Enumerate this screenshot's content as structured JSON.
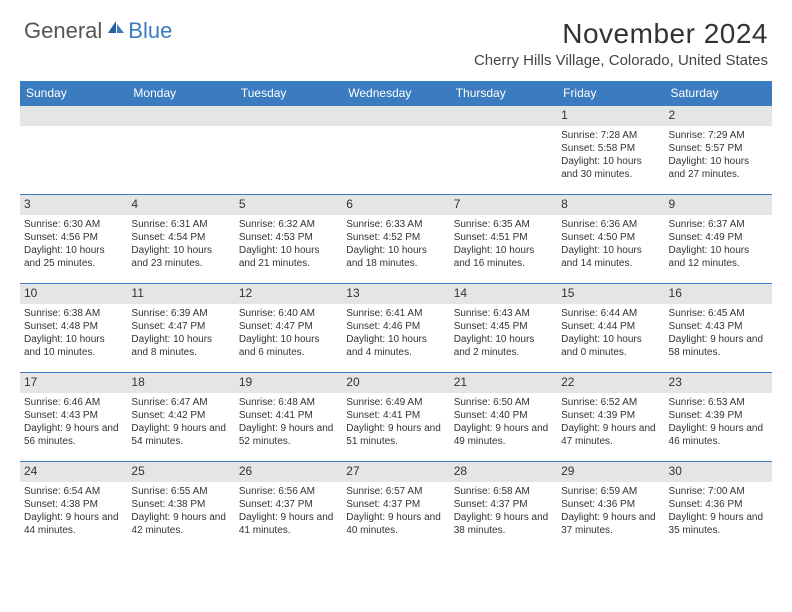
{
  "logo": {
    "general": "General",
    "blue": "Blue"
  },
  "title": "November 2024",
  "location": "Cherry Hills Village, Colorado, United States",
  "day_headers": [
    "Sunday",
    "Monday",
    "Tuesday",
    "Wednesday",
    "Thursday",
    "Friday",
    "Saturday"
  ],
  "colors": {
    "header_bg": "#3b7bbf",
    "header_text": "#ffffff",
    "daynum_bg": "#e5e5e5",
    "row_border": "#3b7bbf",
    "body_text": "#333333"
  },
  "weeks": [
    [
      {
        "num": "",
        "sunrise": "",
        "sunset": "",
        "daylight": ""
      },
      {
        "num": "",
        "sunrise": "",
        "sunset": "",
        "daylight": ""
      },
      {
        "num": "",
        "sunrise": "",
        "sunset": "",
        "daylight": ""
      },
      {
        "num": "",
        "sunrise": "",
        "sunset": "",
        "daylight": ""
      },
      {
        "num": "",
        "sunrise": "",
        "sunset": "",
        "daylight": ""
      },
      {
        "num": "1",
        "sunrise": "Sunrise: 7:28 AM",
        "sunset": "Sunset: 5:58 PM",
        "daylight": "Daylight: 10 hours and 30 minutes."
      },
      {
        "num": "2",
        "sunrise": "Sunrise: 7:29 AM",
        "sunset": "Sunset: 5:57 PM",
        "daylight": "Daylight: 10 hours and 27 minutes."
      }
    ],
    [
      {
        "num": "3",
        "sunrise": "Sunrise: 6:30 AM",
        "sunset": "Sunset: 4:56 PM",
        "daylight": "Daylight: 10 hours and 25 minutes."
      },
      {
        "num": "4",
        "sunrise": "Sunrise: 6:31 AM",
        "sunset": "Sunset: 4:54 PM",
        "daylight": "Daylight: 10 hours and 23 minutes."
      },
      {
        "num": "5",
        "sunrise": "Sunrise: 6:32 AM",
        "sunset": "Sunset: 4:53 PM",
        "daylight": "Daylight: 10 hours and 21 minutes."
      },
      {
        "num": "6",
        "sunrise": "Sunrise: 6:33 AM",
        "sunset": "Sunset: 4:52 PM",
        "daylight": "Daylight: 10 hours and 18 minutes."
      },
      {
        "num": "7",
        "sunrise": "Sunrise: 6:35 AM",
        "sunset": "Sunset: 4:51 PM",
        "daylight": "Daylight: 10 hours and 16 minutes."
      },
      {
        "num": "8",
        "sunrise": "Sunrise: 6:36 AM",
        "sunset": "Sunset: 4:50 PM",
        "daylight": "Daylight: 10 hours and 14 minutes."
      },
      {
        "num": "9",
        "sunrise": "Sunrise: 6:37 AM",
        "sunset": "Sunset: 4:49 PM",
        "daylight": "Daylight: 10 hours and 12 minutes."
      }
    ],
    [
      {
        "num": "10",
        "sunrise": "Sunrise: 6:38 AM",
        "sunset": "Sunset: 4:48 PM",
        "daylight": "Daylight: 10 hours and 10 minutes."
      },
      {
        "num": "11",
        "sunrise": "Sunrise: 6:39 AM",
        "sunset": "Sunset: 4:47 PM",
        "daylight": "Daylight: 10 hours and 8 minutes."
      },
      {
        "num": "12",
        "sunrise": "Sunrise: 6:40 AM",
        "sunset": "Sunset: 4:47 PM",
        "daylight": "Daylight: 10 hours and 6 minutes."
      },
      {
        "num": "13",
        "sunrise": "Sunrise: 6:41 AM",
        "sunset": "Sunset: 4:46 PM",
        "daylight": "Daylight: 10 hours and 4 minutes."
      },
      {
        "num": "14",
        "sunrise": "Sunrise: 6:43 AM",
        "sunset": "Sunset: 4:45 PM",
        "daylight": "Daylight: 10 hours and 2 minutes."
      },
      {
        "num": "15",
        "sunrise": "Sunrise: 6:44 AM",
        "sunset": "Sunset: 4:44 PM",
        "daylight": "Daylight: 10 hours and 0 minutes."
      },
      {
        "num": "16",
        "sunrise": "Sunrise: 6:45 AM",
        "sunset": "Sunset: 4:43 PM",
        "daylight": "Daylight: 9 hours and 58 minutes."
      }
    ],
    [
      {
        "num": "17",
        "sunrise": "Sunrise: 6:46 AM",
        "sunset": "Sunset: 4:43 PM",
        "daylight": "Daylight: 9 hours and 56 minutes."
      },
      {
        "num": "18",
        "sunrise": "Sunrise: 6:47 AM",
        "sunset": "Sunset: 4:42 PM",
        "daylight": "Daylight: 9 hours and 54 minutes."
      },
      {
        "num": "19",
        "sunrise": "Sunrise: 6:48 AM",
        "sunset": "Sunset: 4:41 PM",
        "daylight": "Daylight: 9 hours and 52 minutes."
      },
      {
        "num": "20",
        "sunrise": "Sunrise: 6:49 AM",
        "sunset": "Sunset: 4:41 PM",
        "daylight": "Daylight: 9 hours and 51 minutes."
      },
      {
        "num": "21",
        "sunrise": "Sunrise: 6:50 AM",
        "sunset": "Sunset: 4:40 PM",
        "daylight": "Daylight: 9 hours and 49 minutes."
      },
      {
        "num": "22",
        "sunrise": "Sunrise: 6:52 AM",
        "sunset": "Sunset: 4:39 PM",
        "daylight": "Daylight: 9 hours and 47 minutes."
      },
      {
        "num": "23",
        "sunrise": "Sunrise: 6:53 AM",
        "sunset": "Sunset: 4:39 PM",
        "daylight": "Daylight: 9 hours and 46 minutes."
      }
    ],
    [
      {
        "num": "24",
        "sunrise": "Sunrise: 6:54 AM",
        "sunset": "Sunset: 4:38 PM",
        "daylight": "Daylight: 9 hours and 44 minutes."
      },
      {
        "num": "25",
        "sunrise": "Sunrise: 6:55 AM",
        "sunset": "Sunset: 4:38 PM",
        "daylight": "Daylight: 9 hours and 42 minutes."
      },
      {
        "num": "26",
        "sunrise": "Sunrise: 6:56 AM",
        "sunset": "Sunset: 4:37 PM",
        "daylight": "Daylight: 9 hours and 41 minutes."
      },
      {
        "num": "27",
        "sunrise": "Sunrise: 6:57 AM",
        "sunset": "Sunset: 4:37 PM",
        "daylight": "Daylight: 9 hours and 40 minutes."
      },
      {
        "num": "28",
        "sunrise": "Sunrise: 6:58 AM",
        "sunset": "Sunset: 4:37 PM",
        "daylight": "Daylight: 9 hours and 38 minutes."
      },
      {
        "num": "29",
        "sunrise": "Sunrise: 6:59 AM",
        "sunset": "Sunset: 4:36 PM",
        "daylight": "Daylight: 9 hours and 37 minutes."
      },
      {
        "num": "30",
        "sunrise": "Sunrise: 7:00 AM",
        "sunset": "Sunset: 4:36 PM",
        "daylight": "Daylight: 9 hours and 35 minutes."
      }
    ]
  ]
}
